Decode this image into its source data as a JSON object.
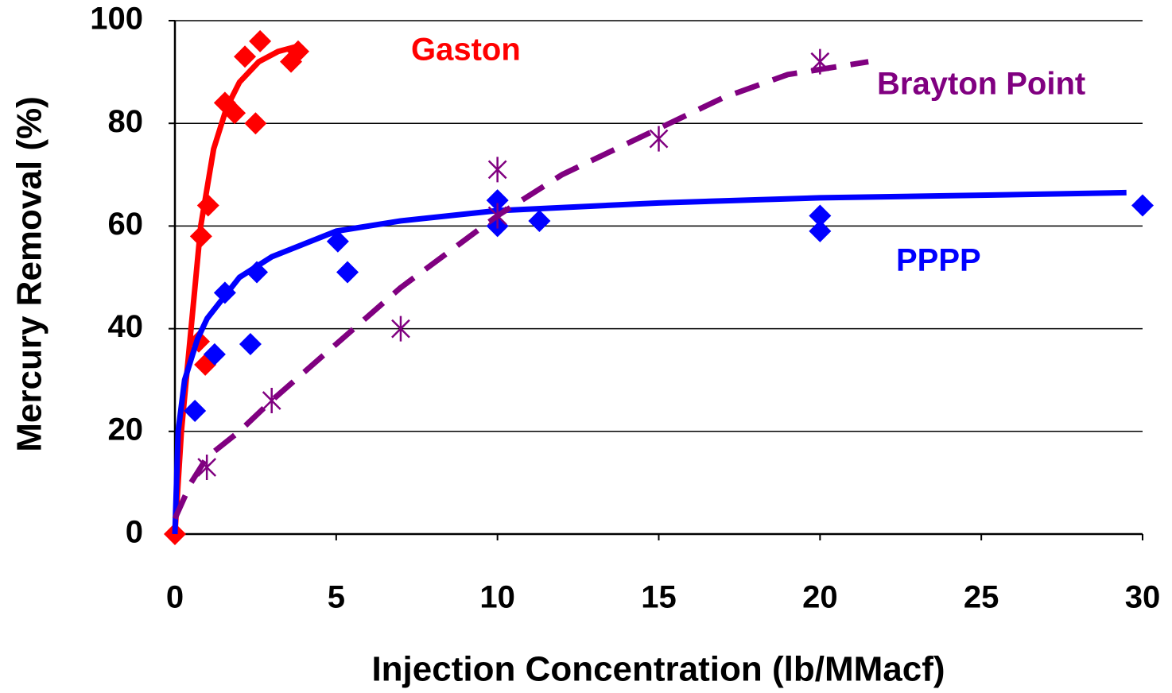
{
  "chart_data": {
    "type": "scatter",
    "xlabel": "Injection Concentration (lb/MMacf)",
    "ylabel": "Mercury Removal (%)",
    "xlim": [
      0,
      30
    ],
    "xticks": [
      0,
      5,
      10,
      15,
      20,
      25,
      30
    ],
    "ylim": [
      0,
      100
    ],
    "yticks": [
      0,
      20,
      40,
      60,
      80,
      100
    ],
    "grid": true,
    "series": [
      {
        "name": "Gaston",
        "color": "#ff0000",
        "marker": "diamond",
        "x": [
          0,
          0.74,
          0.94,
          0.81,
          1.03,
          1.55,
          1.85,
          2.17,
          2.64,
          2.5,
          3.6,
          3.82
        ],
        "values": [
          0,
          37.5,
          33,
          58,
          64,
          84,
          82,
          93,
          96,
          80,
          92,
          94
        ],
        "fit": {
          "dash": false,
          "x": [
            0,
            0.2,
            0.5,
            0.8,
            1.2,
            1.6,
            2,
            2.6,
            3.2,
            3.8
          ],
          "values": [
            0,
            20,
            40,
            60,
            75,
            83,
            88,
            92,
            94,
            95
          ]
        }
      },
      {
        "name": "PPPP",
        "color": "#0000ff",
        "marker": "diamond",
        "x": [
          0.62,
          1.23,
          1.55,
          2.34,
          2.54,
          5.05,
          5.35,
          10,
          10,
          11.3,
          20,
          20,
          30
        ],
        "values": [
          24,
          35,
          47,
          37,
          51,
          57,
          51,
          65,
          60,
          61,
          62,
          59,
          64
        ],
        "fit": {
          "dash": false,
          "x": [
            0,
            0.1,
            0.3,
            0.7,
            1,
            2,
            3,
            5,
            7,
            10,
            15,
            20,
            25,
            29.5
          ],
          "values": [
            0,
            20,
            30,
            38,
            42,
            50,
            54,
            59,
            61,
            63,
            64.5,
            65.5,
            66,
            66.5
          ]
        }
      },
      {
        "name": "Brayton Point",
        "color": "#800080",
        "marker": "asterisk",
        "x": [
          0.99,
          3,
          7,
          10,
          10,
          15,
          20
        ],
        "values": [
          13,
          26,
          40,
          71,
          62,
          77,
          92
        ],
        "fit": {
          "dash": true,
          "x": [
            0,
            0.5,
            1,
            2,
            3,
            5,
            7,
            10,
            12,
            15,
            17,
            19,
            21.5
          ],
          "values": [
            3,
            10,
            15,
            20,
            26,
            37,
            48,
            62,
            70,
            79,
            85,
            89.5,
            92
          ]
        }
      }
    ]
  }
}
